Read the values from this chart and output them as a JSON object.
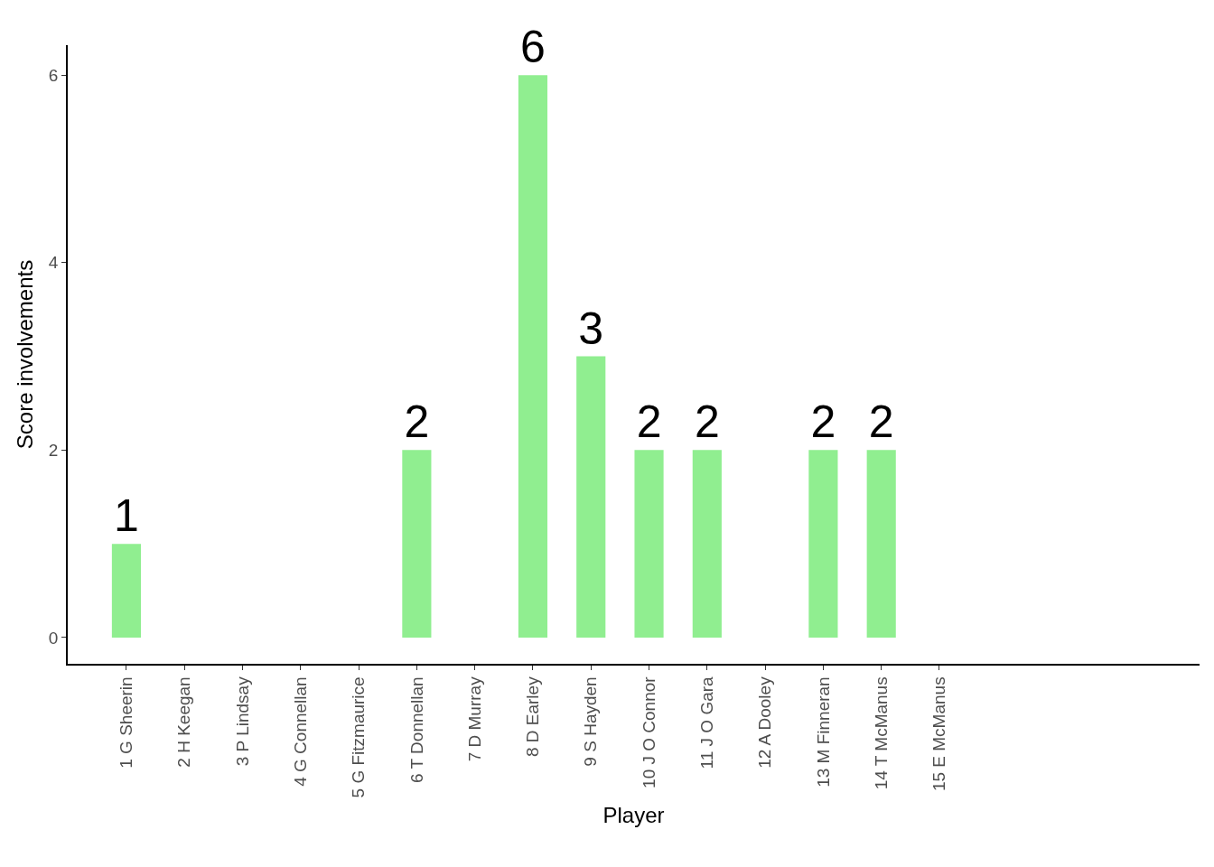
{
  "chart_data": {
    "type": "bar",
    "xlabel": "Player",
    "ylabel": "Score involvements",
    "categories": [
      "1 G Sheerin",
      "2 H Keegan",
      "3 P Lindsay",
      "4 G Connellan",
      "5 G Fitzmaurice",
      "6 T Donnellan",
      "7 D Murray",
      "8 D Earley",
      "9 S Hayden",
      "10 J O Connor",
      "11 J O Gara",
      "12 A Dooley",
      "13 M Finneran",
      "14 T McManus",
      "15 E McManus"
    ],
    "values": [
      1,
      0,
      0,
      0,
      0,
      2,
      0,
      6,
      3,
      2,
      2,
      0,
      2,
      2,
      0
    ],
    "value_labels": [
      "1",
      null,
      null,
      null,
      null,
      "2",
      null,
      "6",
      "3",
      "2",
      "2",
      null,
      "2",
      "2",
      null
    ],
    "color": "#90ee90",
    "ylim": [
      -0.28,
      6.32
    ],
    "yticks": [
      0,
      2,
      4,
      6
    ],
    "grid": false
  }
}
